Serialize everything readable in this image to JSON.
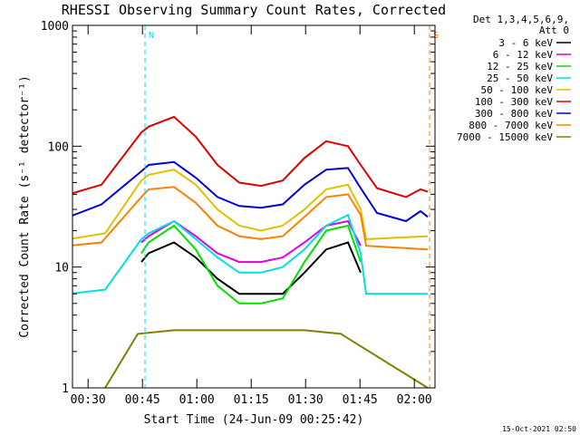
{
  "chart_data": {
    "type": "line",
    "title": "RHESSI Observing Summary Count Rates, Corrected",
    "xlabel": "Start Time (24-Jun-09 00:25:42)",
    "ylabel": "Corrected Count Rate (s⁻¹ detector⁻¹)",
    "yscale": "log",
    "xlim": [
      0,
      100
    ],
    "ylim": [
      1,
      1000
    ],
    "x_ticks": [
      {
        "x": 4.3,
        "label": "00:30"
      },
      {
        "x": 19.3,
        "label": "00:45"
      },
      {
        "x": 34.3,
        "label": "01:00"
      },
      {
        "x": 49.3,
        "label": "01:15"
      },
      {
        "x": 64.3,
        "label": "01:30"
      },
      {
        "x": 79.3,
        "label": "01:45"
      },
      {
        "x": 94.3,
        "label": "02:00"
      }
    ],
    "y_ticks": [
      {
        "y": 1,
        "label": "1"
      },
      {
        "y": 10,
        "label": "10"
      },
      {
        "y": 100,
        "label": "100"
      },
      {
        "y": 1000,
        "label": "1000"
      }
    ],
    "legend_header": [
      "Det 1,3,4,5,6,9,",
      "Att 0"
    ],
    "legend_position": "right",
    "series": [
      {
        "name": "3 - 6 keV",
        "color": "#000000",
        "x": [
          19,
          21,
          28,
          34,
          40,
          46,
          52,
          58,
          64,
          70,
          76,
          79.5
        ],
        "values": [
          11,
          13,
          16,
          12,
          8,
          6,
          6,
          6,
          9,
          14,
          16,
          9
        ]
      },
      {
        "name": "6 - 12 keV",
        "color": "#e000e0",
        "x": [
          19,
          21,
          28,
          34,
          40,
          46,
          52,
          58,
          64,
          70,
          76,
          79.5
        ],
        "values": [
          16,
          18,
          24,
          18,
          13,
          11,
          11,
          12,
          16,
          22,
          24,
          15
        ]
      },
      {
        "name": "12 - 25 keV",
        "color": "#00e000",
        "x": [
          19,
          21,
          28,
          34,
          40,
          46,
          52,
          58,
          64,
          70,
          76,
          79.5
        ],
        "values": [
          13,
          16,
          22,
          14,
          7,
          5,
          5,
          5.5,
          11,
          20,
          22,
          11
        ]
      },
      {
        "name": "25 - 50 keV",
        "color": "#00e0e0",
        "x": [
          -1,
          9,
          19,
          21,
          28,
          34,
          40,
          46,
          52,
          58,
          64,
          70,
          76,
          79.5,
          81,
          98
        ],
        "values": [
          6,
          6.5,
          17,
          19,
          24,
          17,
          12,
          9,
          9,
          10,
          14,
          22,
          27,
          13,
          6,
          6
        ]
      },
      {
        "name": "50 - 100 keV",
        "color": "#e0c000",
        "x": [
          -1,
          9,
          19,
          21,
          28,
          34,
          40,
          46,
          52,
          58,
          64,
          70,
          76,
          79.5,
          81,
          98
        ],
        "values": [
          17,
          19,
          52,
          58,
          64,
          48,
          30,
          22,
          20,
          22,
          30,
          44,
          48,
          30,
          17,
          18
        ]
      },
      {
        "name": "100 - 300 keV",
        "color": "#e00000",
        "x": [
          -1,
          8,
          19,
          21,
          28,
          34,
          40,
          46,
          52,
          58,
          64,
          70,
          76,
          79.5,
          84,
          92,
          96,
          98
        ],
        "values": [
          40,
          48,
          130,
          145,
          175,
          120,
          70,
          50,
          47,
          52,
          80,
          110,
          100,
          70,
          45,
          38,
          44,
          42
        ]
      },
      {
        "name": "300 - 800 keV",
        "color": "#0000e0",
        "x": [
          -1,
          8,
          19,
          21,
          28,
          34,
          40,
          46,
          52,
          58,
          64,
          70,
          76,
          79.5,
          84,
          92,
          96,
          98
        ],
        "values": [
          26,
          33,
          62,
          70,
          74,
          55,
          38,
          32,
          31,
          33,
          48,
          64,
          66,
          45,
          28,
          24,
          29,
          26
        ]
      },
      {
        "name": "800 - 7000 keV",
        "color": "#ff8000",
        "x": [
          -1,
          8,
          19,
          21,
          28,
          34,
          40,
          46,
          52,
          58,
          64,
          70,
          76,
          79.5,
          81,
          98
        ],
        "values": [
          15,
          16,
          38,
          44,
          46,
          34,
          22,
          18,
          17,
          18,
          26,
          38,
          40,
          27,
          15,
          14
        ]
      },
      {
        "name": "7000 - 15000 keV",
        "color": "#808000",
        "x": [
          9,
          18,
          28,
          64,
          74,
          98
        ],
        "values": [
          1,
          2.8,
          3,
          3,
          2.8,
          1
        ]
      }
    ],
    "annotations": [
      {
        "label": "N",
        "x": 20,
        "color": "#00e0e0"
      },
      {
        "label": "S",
        "x": 98.5,
        "color": "#ff8000"
      }
    ]
  },
  "footer_timestamp": "15-Oct-2021 02:50"
}
